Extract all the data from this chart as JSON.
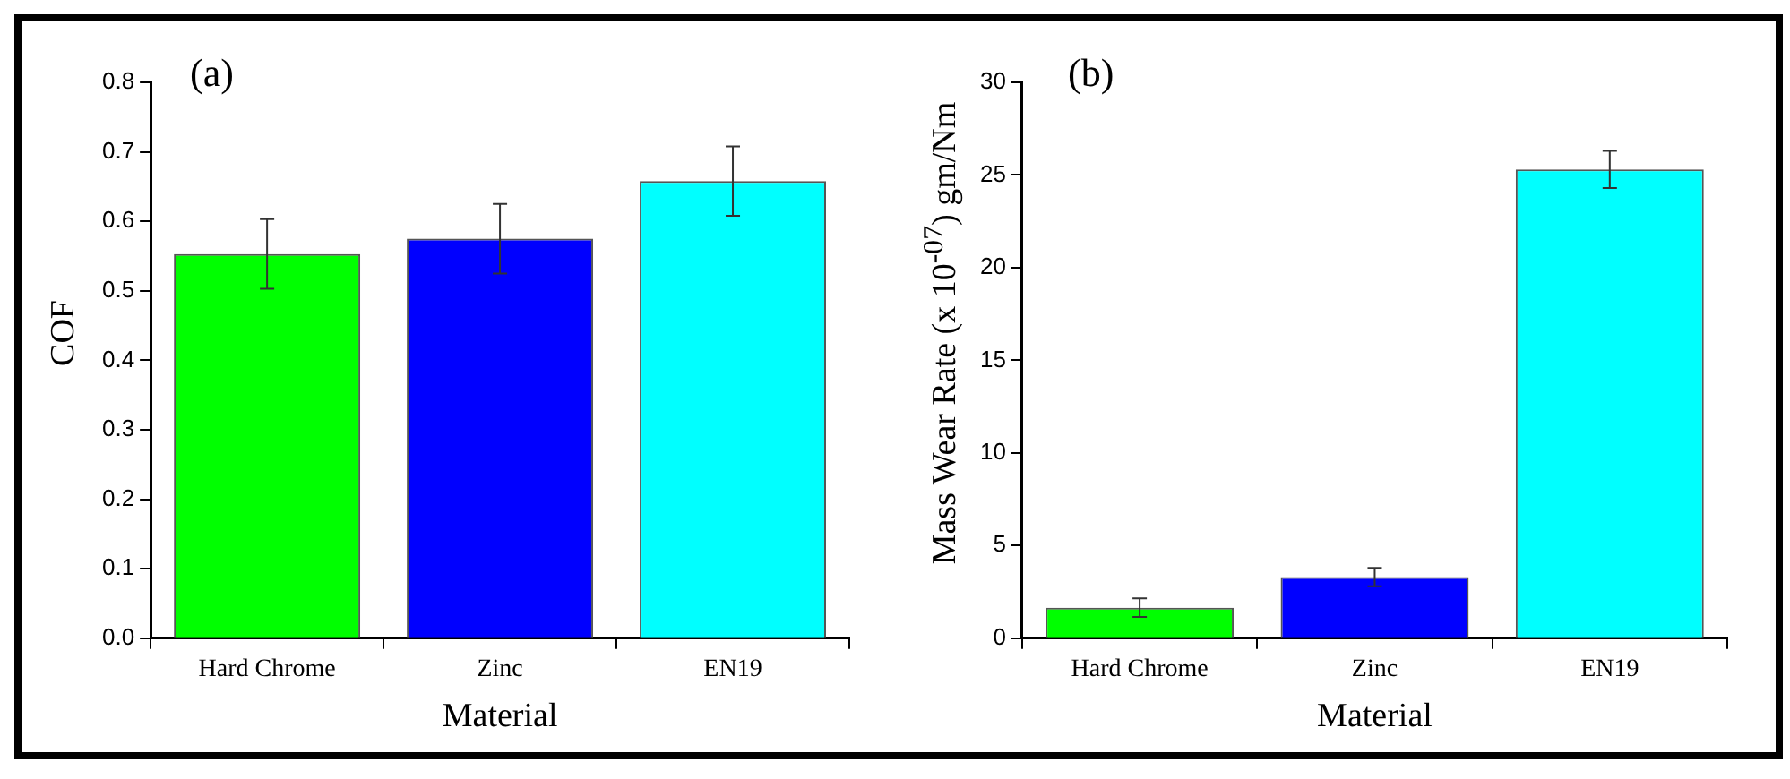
{
  "chart_data": [
    {
      "type": "bar",
      "title": "(a)",
      "xlabel": "Material",
      "ylabel": "COF",
      "categories": [
        "Hard Chrome",
        "Zinc",
        "EN19"
      ],
      "values": [
        0.553,
        0.575,
        0.658
      ],
      "colors": [
        "#00ff00",
        "#0000ff",
        "#00ffff"
      ],
      "errors": [
        0.05,
        0.05,
        0.05
      ],
      "ylim": [
        0,
        0.8
      ],
      "yticks": [
        {
          "value": 0,
          "label": "0.0"
        },
        0.1,
        0.2,
        0.3,
        0.4,
        0.5,
        0.6,
        0.7,
        0.8
      ],
      "grid": false
    },
    {
      "type": "bar",
      "title": "(b)",
      "xlabel": "Material",
      "ylabel": "Mass Wear Rate (x 10$^{-07}$) gm/Nm",
      "categories": [
        "Hard Chrome",
        "Zinc",
        "EN19"
      ],
      "values": [
        1.65,
        3.3,
        25.3
      ],
      "colors": [
        "#00ff00",
        "#0000ff",
        "#00ffff"
      ],
      "errors": [
        0.5,
        0.5,
        1.0
      ],
      "ylim": [
        0,
        30
      ],
      "yticks": [
        0,
        5,
        10,
        15,
        20,
        25,
        30
      ],
      "grid": false
    }
  ]
}
